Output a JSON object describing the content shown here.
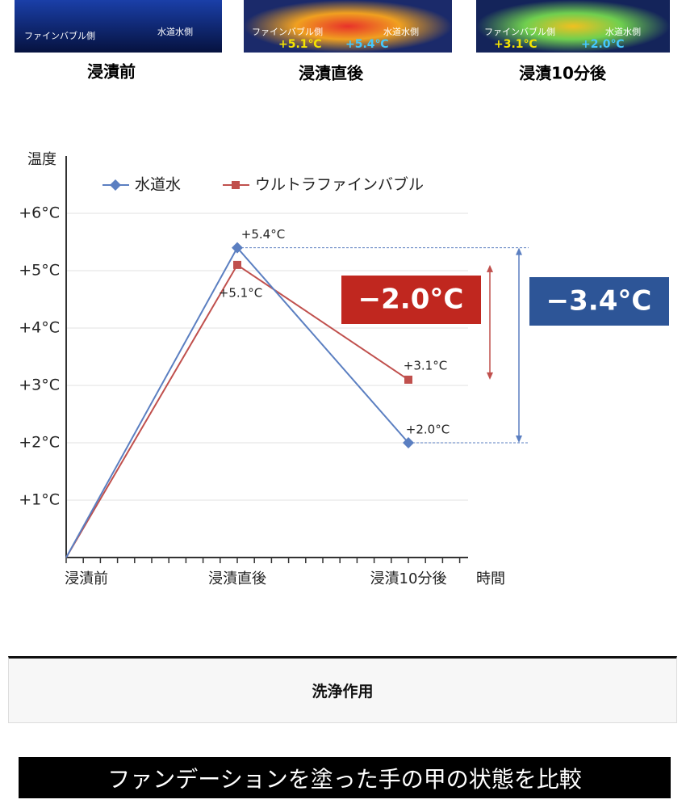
{
  "images": [
    {
      "caption": "浸漬前",
      "labels": [
        "ファインバブル側",
        "水道水側"
      ]
    },
    {
      "caption": "浸漬直後",
      "labels": [
        "ファインバブル側",
        "水道水側",
        "+5.1℃",
        "+5.4℃"
      ]
    },
    {
      "caption": "浸漬10分後",
      "labels": [
        "ファインバブル側",
        "水道水側",
        "+3.1℃",
        "+2.0℃"
      ]
    }
  ],
  "chart_data": {
    "type": "line",
    "y_label": "温度",
    "x_label": "時間",
    "categories": [
      "浸漬前",
      "浸漬直後",
      "浸漬10分後"
    ],
    "series": [
      {
        "name": "水道水",
        "color": "#5b7fc1",
        "marker": "diamond",
        "values": [
          0,
          5.4,
          2.0
        ],
        "value_labels": [
          null,
          "+5.4°C",
          "+2.0°C"
        ]
      },
      {
        "name": "ウルトラファインバブル",
        "color": "#c0504d",
        "marker": "square",
        "values": [
          0,
          5.1,
          3.1
        ],
        "value_labels": [
          null,
          "+5.1°C",
          "+3.1°C"
        ]
      }
    ],
    "ylim": [
      0,
      7
    ],
    "yticks": [
      {
        "value": 1,
        "label": "+1°C"
      },
      {
        "value": 2,
        "label": "+2°C"
      },
      {
        "value": 3,
        "label": "+3°C"
      },
      {
        "value": 4,
        "label": "+4°C"
      },
      {
        "value": 5,
        "label": "+5°C"
      },
      {
        "value": 6,
        "label": "+6°C"
      }
    ],
    "grid": true,
    "annotations": [
      {
        "text": "−2.0°C",
        "color": "#c0271f"
      },
      {
        "text": "−3.4°C",
        "color": "#2d5597"
      }
    ]
  },
  "section": {
    "heading": "洗浄作用"
  },
  "banner": {
    "text": "ファンデーションを塗った手の甲の状態を比較"
  }
}
